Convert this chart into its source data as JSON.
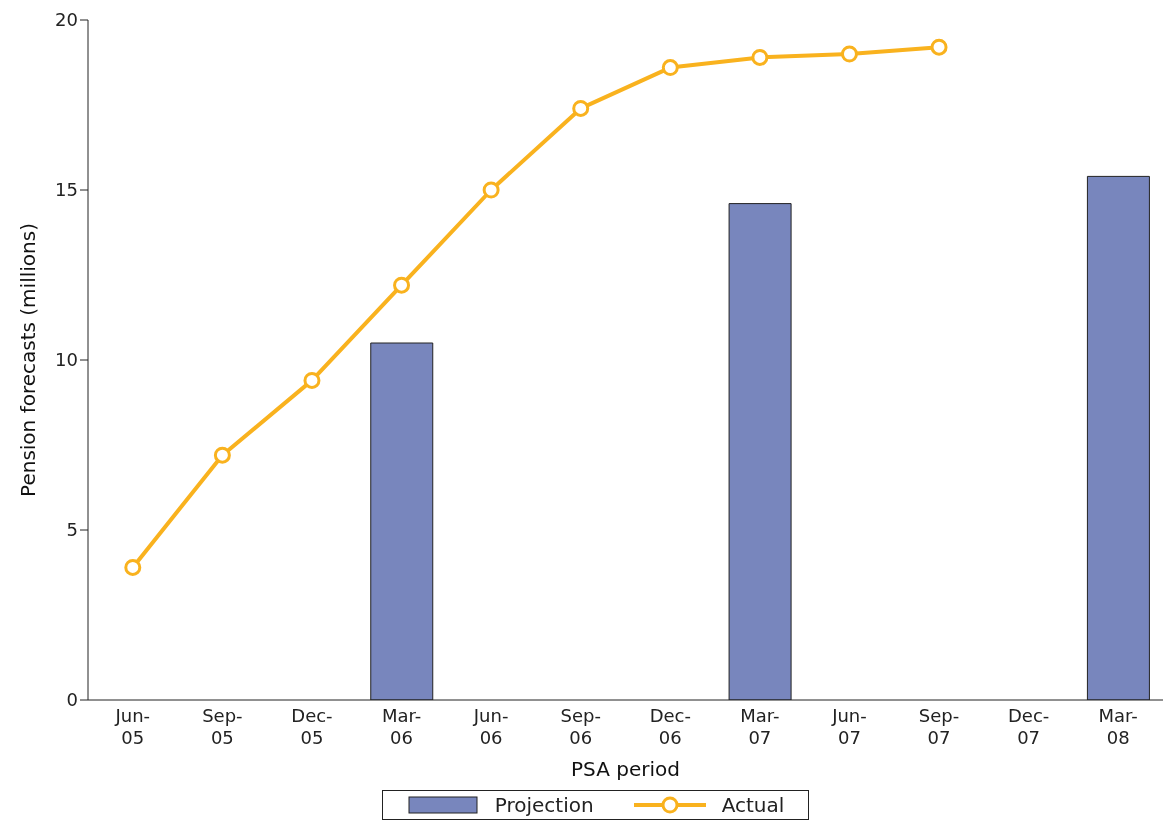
{
  "chart_data": {
    "type": "bar",
    "xlabel": "PSA period",
    "ylabel": "Pension forecasts (millions)",
    "categories": [
      "Jun-05",
      "Sep-05",
      "Dec-05",
      "Mar-06",
      "Jun-06",
      "Sep-06",
      "Dec-06",
      "Mar-07",
      "Jun-07",
      "Sep-07",
      "Dec-07",
      "Mar-08"
    ],
    "series": [
      {
        "name": "Projection",
        "color": "#7886bd",
        "values": [
          null,
          null,
          null,
          10.5,
          null,
          null,
          null,
          14.6,
          null,
          null,
          null,
          15.4
        ]
      },
      {
        "name": "Actual",
        "type": "line",
        "color": "#f9b21e",
        "marker": "circle",
        "values": [
          3.9,
          7.2,
          9.4,
          12.2,
          15.0,
          17.4,
          18.6,
          18.9,
          19.0,
          19.2,
          null,
          null
        ]
      }
    ],
    "ylim": [
      0,
      20
    ],
    "yticks": [
      0,
      5,
      10,
      15,
      20
    ],
    "legend": "bottom"
  }
}
